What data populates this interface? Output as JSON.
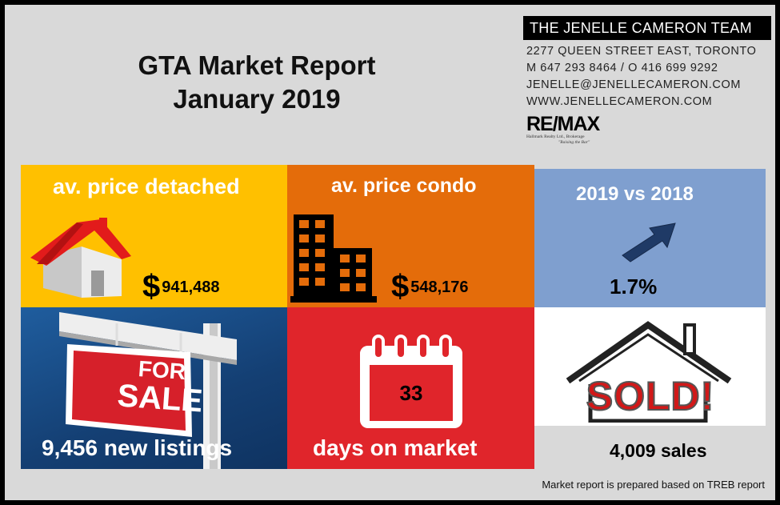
{
  "header": {
    "title_line1": "GTA Market Report",
    "title_line2": "January 2019"
  },
  "contact": {
    "team": "THE JENELLE CAMERON TEAM",
    "address": "2277 QUEEN STREET EAST, TORONTO",
    "phones": "M 647 293 8464  /  O 416 699 9292",
    "email": "JENELLE@JENELLECAMERON.COM",
    "website": "WWW.JENELLECAMERON.COM",
    "brokerage_logo": "RE/MAX",
    "brokerage_name": "Hallmark Realty Ltd., Brokerage",
    "tagline": "\"Raising the Bar\""
  },
  "tiles": {
    "detached": {
      "label": "av. price detached",
      "currency": "$",
      "value": "941,488",
      "icon": "house-icon"
    },
    "condo": {
      "label": "av. price condo",
      "currency": "$",
      "value": "548,176",
      "icon": "building-icon"
    },
    "yoy": {
      "label": "2019 vs 2018",
      "value": "1.7%",
      "icon": "arrow-up-right-icon"
    },
    "listings": {
      "label": "9,456 new listings",
      "sign_line1": "FOR",
      "sign_line2": "SALE",
      "icon": "for-sale-sign-icon"
    },
    "dom": {
      "value": "33",
      "label": "days on market",
      "icon": "calendar-icon"
    },
    "sales": {
      "label": "4,009 sales",
      "sign": "SOLD!",
      "icon": "sold-house-icon"
    }
  },
  "footer": {
    "note": "Market report  is prepared based on TREB  report"
  },
  "colors": {
    "detached": "#ffc000",
    "condo": "#e46c0a",
    "yoy": "#7f9fcf",
    "listings": "#1f5d9e",
    "dom": "#e0252b",
    "sold": "#d9d9d9"
  }
}
